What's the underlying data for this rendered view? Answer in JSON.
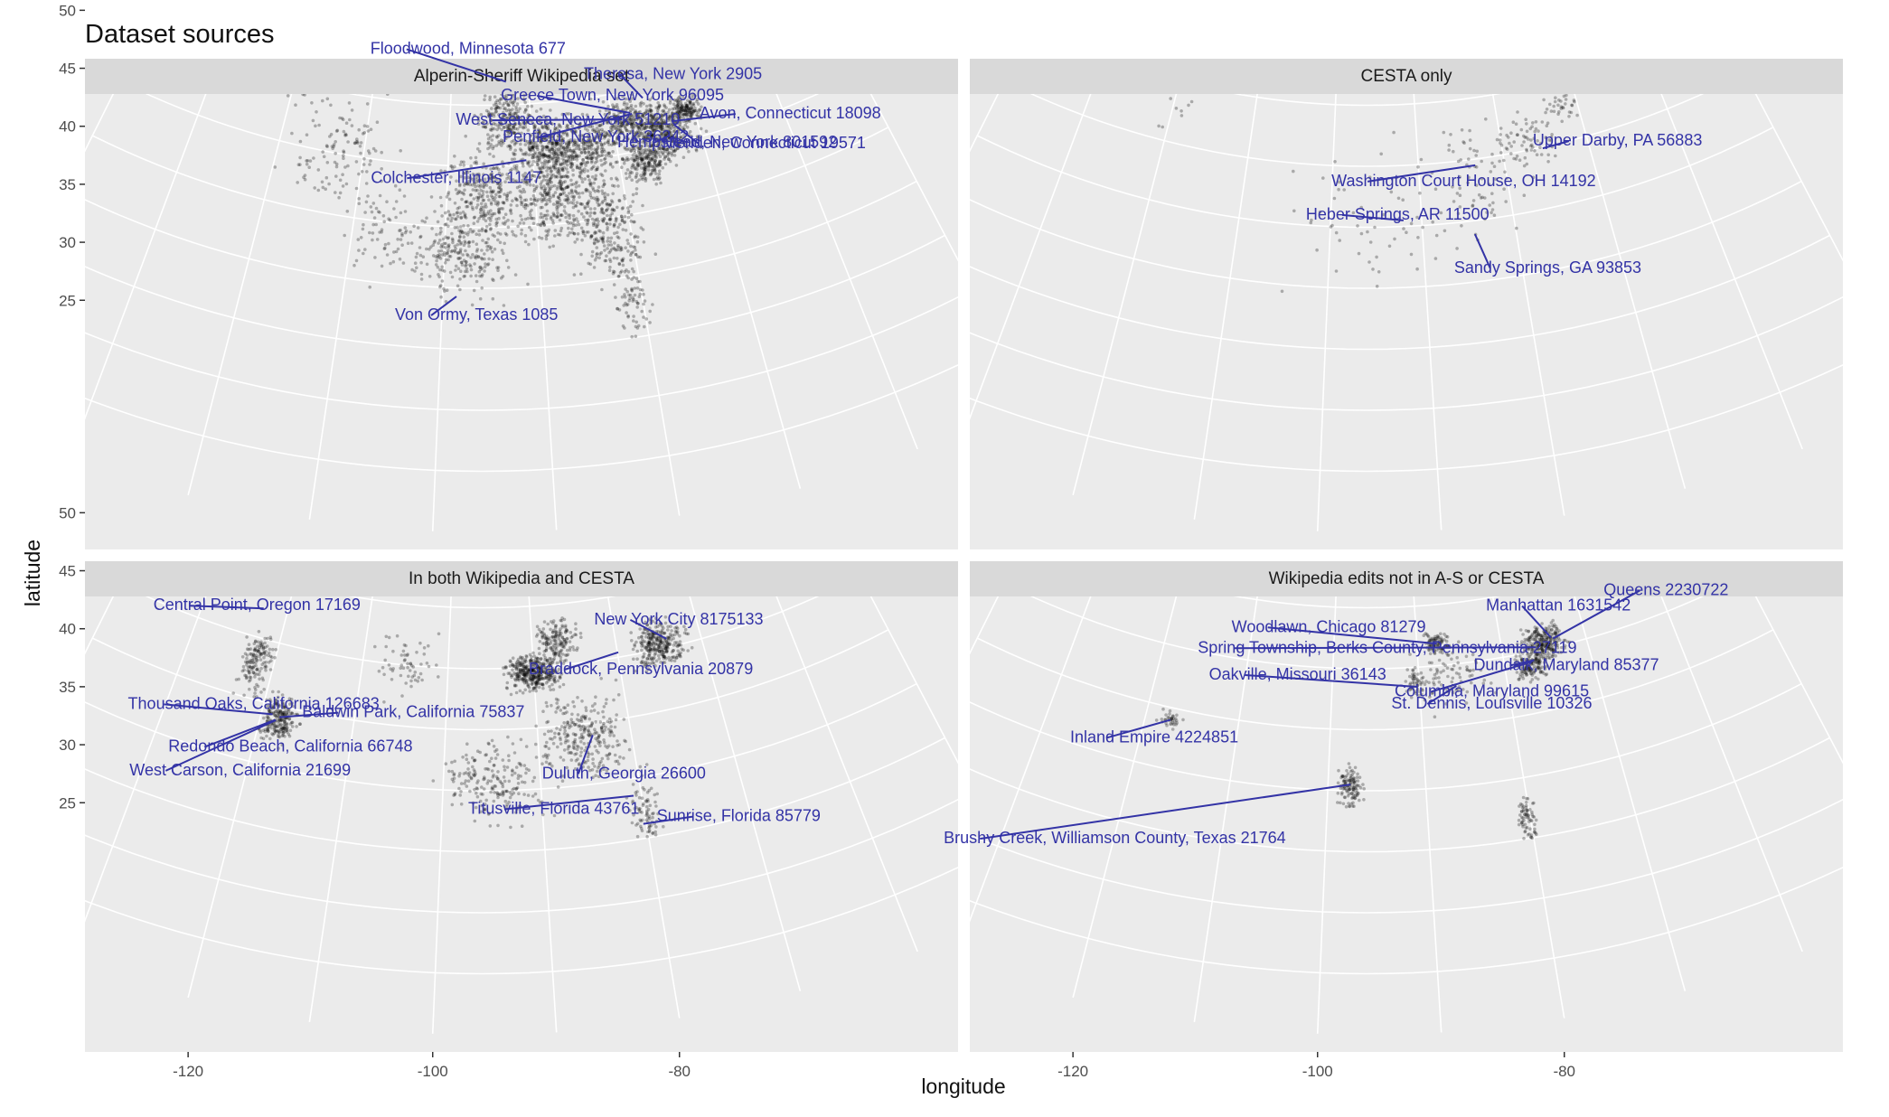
{
  "title": "Dataset sources",
  "xlabel": "longitude",
  "ylabel": "latitude",
  "colors": {
    "panel_bg": "#ebebeb",
    "strip_bg": "#d9d9d9",
    "grid": "#ffffff",
    "point": "#000000",
    "annotation": "#3333a6"
  },
  "chart_data": [
    {
      "type": "scatter",
      "facet": "Alperin-Sheriff Wikipedia set",
      "xlim": [
        -127,
        -66
      ],
      "ylim": [
        18,
        51
      ],
      "xticks": [
        -120,
        -100,
        -80
      ],
      "yticks": [
        25,
        30,
        35,
        40,
        45,
        50
      ],
      "annotations": [
        {
          "label": "Floodwood, Minnesota 677",
          "lon": -92.9,
          "lat": 46.9
        },
        {
          "label": "Theresa, New York 2905",
          "lon": -75.8,
          "lat": 44.2
        },
        {
          "label": "Greece Town, New York 96095",
          "lon": -77.7,
          "lat": 43.2
        },
        {
          "label": "Avon, Connecticut 18098",
          "lon": -72.9,
          "lat": 41.8
        },
        {
          "label": "West Seneca, New York 51210",
          "lon": -78.8,
          "lat": 42.8
        },
        {
          "label": "Meriden, Connecticut 19571",
          "lon": -72.8,
          "lat": 41.5
        },
        {
          "label": "Penfield, New York 36242",
          "lon": -77.5,
          "lat": 43.1
        },
        {
          "label": "Colchester, Illinois 1147",
          "lon": -90.8,
          "lat": 40.4
        },
        {
          "label": "Hempstead, New York 801592",
          "lon": -73.6,
          "lat": 40.7
        },
        {
          "label": "Von Ormy, Texas 1085",
          "lon": -98.6,
          "lat": 29.3
        }
      ]
    },
    {
      "type": "scatter",
      "facet": "CESTA only",
      "xlim": [
        -127,
        -66
      ],
      "ylim": [
        18,
        51
      ],
      "xticks": [
        -120,
        -100,
        -80
      ],
      "yticks": [
        25,
        30,
        35,
        40,
        45,
        50
      ],
      "annotations": [
        {
          "label": "Upper Darby, PA 56883",
          "lon": -75.3,
          "lat": 39.9
        },
        {
          "label": "Washington Court House, OH 14192",
          "lon": -83.4,
          "lat": 39.5
        },
        {
          "label": "Heber Springs, AR 11500",
          "lon": -92.0,
          "lat": 35.5
        },
        {
          "label": "Sandy Springs, GA 93853",
          "lon": -84.4,
          "lat": 33.9
        }
      ]
    },
    {
      "type": "scatter",
      "facet": "In both Wikipedia and CESTA",
      "xlim": [
        -127,
        -66
      ],
      "ylim": [
        18,
        51
      ],
      "xticks": [
        -120,
        -100,
        -80
      ],
      "yticks": [
        25,
        30,
        35,
        40,
        45,
        50
      ],
      "annotations": [
        {
          "label": "Central Point, Oregon 17169",
          "lon": -122.9,
          "lat": 42.4
        },
        {
          "label": "New York City 8175133",
          "lon": -74.0,
          "lat": 40.7
        },
        {
          "label": "Braddock, Pennsylvania 20879",
          "lon": -79.9,
          "lat": 40.4
        },
        {
          "label": "Thousand Oaks, California 126683",
          "lon": -118.8,
          "lat": 34.2
        },
        {
          "label": "Baldwin Park, California 75837",
          "lon": -118.0,
          "lat": 34.1
        },
        {
          "label": "Redondo Beach, California 66748",
          "lon": -118.4,
          "lat": 33.8
        },
        {
          "label": "West Carson, California 21699",
          "lon": -118.3,
          "lat": 33.8
        },
        {
          "label": "Duluth, Georgia 26600",
          "lon": -84.1,
          "lat": 34.0
        },
        {
          "label": "Titusville, Florida 43761",
          "lon": -80.8,
          "lat": 28.6
        },
        {
          "label": "Sunrise, Florida 85779",
          "lon": -80.3,
          "lat": 26.2
        }
      ]
    },
    {
      "type": "scatter",
      "facet": "Wikipedia edits not in A-S or CESTA",
      "xlim": [
        -127,
        -66
      ],
      "ylim": [
        18,
        51
      ],
      "xticks": [
        -120,
        -100,
        -80
      ],
      "yticks": [
        25,
        30,
        35,
        40,
        45,
        50
      ],
      "annotations": [
        {
          "label": "Queens 2230722",
          "lon": -73.8,
          "lat": 40.7
        },
        {
          "label": "Manhattan 1631542",
          "lon": -74.0,
          "lat": 40.8
        },
        {
          "label": "Woodlawn, Chicago 81279",
          "lon": -87.6,
          "lat": 41.8
        },
        {
          "label": "Dundalk, Maryland 85377",
          "lon": -76.5,
          "lat": 39.3
        },
        {
          "label": "Spring Township, Berks County, Pennsylvania 27119",
          "lon": -76.0,
          "lat": 40.3
        },
        {
          "label": "Columbia, Maryland 99615",
          "lon": -76.9,
          "lat": 39.2
        },
        {
          "label": "Oakville, Missouri 36143",
          "lon": -90.3,
          "lat": 38.4
        },
        {
          "label": "St. Dennis, Louisville 10326",
          "lon": -85.8,
          "lat": 38.2
        },
        {
          "label": "Inland Empire 4224851",
          "lon": -117.3,
          "lat": 34.0
        },
        {
          "label": "Brushy Creek, Williamson County, Texas 21764",
          "lon": -97.7,
          "lat": 30.5
        }
      ]
    }
  ]
}
